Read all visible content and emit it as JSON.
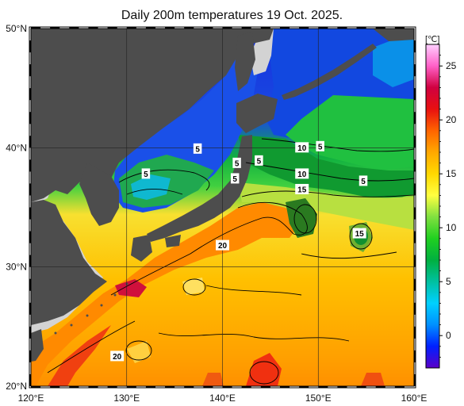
{
  "title": "Daily 200m temperatures 19 Oct. 2025.",
  "map": {
    "lon_range": [
      120,
      160
    ],
    "lat_range": [
      20,
      50
    ],
    "lon_ticks": [
      {
        "value": 120,
        "label": "120°E"
      },
      {
        "value": 130,
        "label": "130°E"
      },
      {
        "value": 140,
        "label": "140°E"
      },
      {
        "value": 150,
        "label": "150°E"
      },
      {
        "value": 160,
        "label": "160°E"
      }
    ],
    "lat_ticks": [
      {
        "value": 20,
        "label": "20°N"
      },
      {
        "value": 30,
        "label": "30°N"
      },
      {
        "value": 40,
        "label": "40°N"
      },
      {
        "value": 50,
        "label": "50°N"
      }
    ],
    "land_color": "#4d4d4d",
    "no_data_color": "#d3d3d3",
    "contour_labels": [
      {
        "text": "5",
        "lon": 137.4,
        "lat": 39.9
      },
      {
        "text": "5",
        "lon": 132.0,
        "lat": 37.8
      },
      {
        "text": "5",
        "lon": 141.5,
        "lat": 38.7
      },
      {
        "text": "5",
        "lon": 143.8,
        "lat": 38.9
      },
      {
        "text": "5",
        "lon": 141.3,
        "lat": 37.4
      },
      {
        "text": "10",
        "lon": 148.3,
        "lat": 40.0
      },
      {
        "text": "5",
        "lon": 150.2,
        "lat": 40.1
      },
      {
        "text": "10",
        "lon": 148.3,
        "lat": 37.8
      },
      {
        "text": "15",
        "lon": 148.3,
        "lat": 36.5
      },
      {
        "text": "5",
        "lon": 154.7,
        "lat": 37.2
      },
      {
        "text": "15",
        "lon": 154.3,
        "lat": 32.8
      },
      {
        "text": "20",
        "lon": 140.0,
        "lat": 31.8
      },
      {
        "text": "20",
        "lon": 129.0,
        "lat": 22.5
      }
    ]
  },
  "colorbar": {
    "unit": "[℃]",
    "min": -3,
    "max": 27,
    "ticks": [
      "0",
      "5",
      "10",
      "15",
      "20",
      "25"
    ],
    "tick_values": [
      0,
      5,
      10,
      15,
      20,
      25
    ],
    "colors": [
      "#5a00c8",
      "#0020ff",
      "#0090ff",
      "#00d0ff",
      "#00c0a0",
      "#00b040",
      "#20d020",
      "#80e040",
      "#ffff40",
      "#ffd800",
      "#ffa800",
      "#ff6400",
      "#e81010",
      "#d00040",
      "#ff60c8",
      "#ffd0ff"
    ]
  }
}
